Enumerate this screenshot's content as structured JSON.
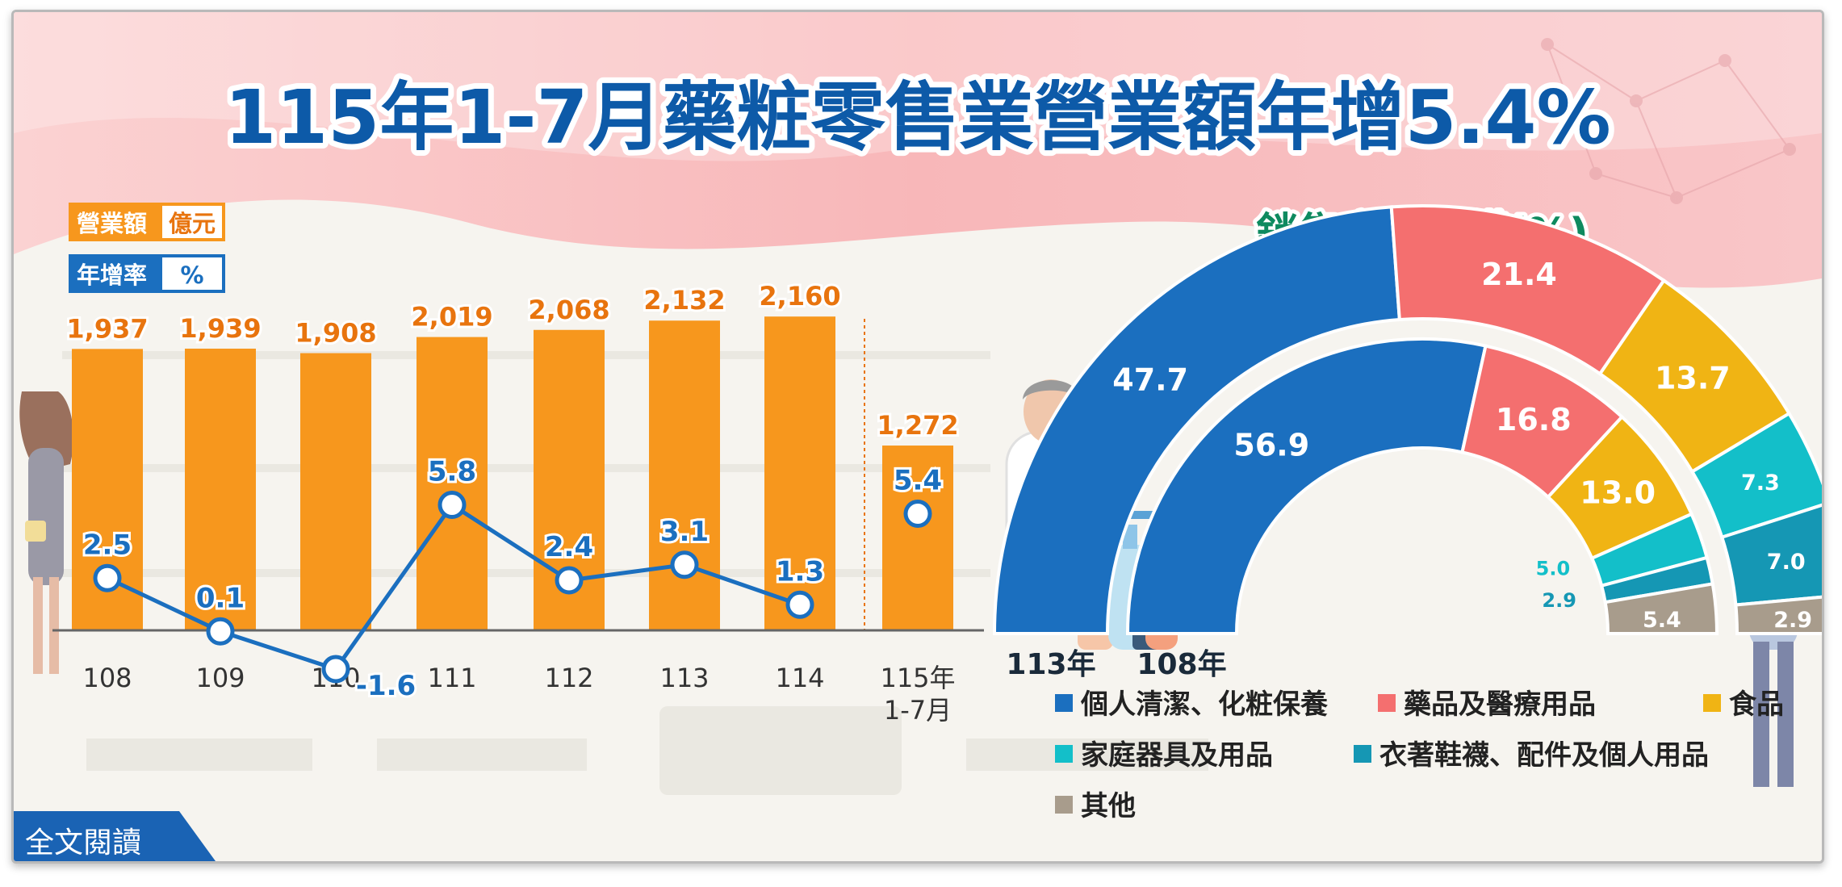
{
  "title": "115年1-7月藥粧零售業營業額年增5.4%",
  "read_more": "全文閱讀",
  "colors": {
    "title_blue": "#0d5aa8",
    "bar_orange": "#f7971d",
    "value_orange": "#e8740e",
    "line_blue": "#1b6fbf",
    "pie_title_green": "#0e8a5f"
  },
  "chart_data": [
    {
      "type": "bar",
      "legend": [
        {
          "label": "營業額",
          "unit": "億元"
        },
        {
          "label": "年增率",
          "unit": "%"
        }
      ],
      "categories": [
        "108",
        "109",
        "110",
        "111",
        "112",
        "113",
        "114",
        "115年\n1-7月"
      ],
      "series": [
        {
          "name": "營業額",
          "type": "bar",
          "values": [
            1937,
            1939,
            1908,
            2019,
            2068,
            2132,
            2160,
            1272
          ],
          "labels": [
            "1,937",
            "1,939",
            "1,908",
            "2,019",
            "2,068",
            "2,132",
            "2,160",
            "1,272"
          ]
        },
        {
          "name": "年增率",
          "type": "line",
          "values": [
            2.5,
            0.1,
            -1.6,
            5.8,
            2.4,
            3.1,
            1.3,
            5.4
          ],
          "labels": [
            "2.5",
            "0.1",
            "-1.6",
            "5.8",
            "2.4",
            "3.1",
            "1.3",
            "5.4"
          ],
          "connected_through": "114"
        }
      ]
    },
    {
      "type": "pie",
      "title": "銷售商品結構(%)",
      "rings": [
        {
          "name": "113年",
          "values": [
            47.7,
            21.4,
            13.7,
            7.3,
            7.0,
            2.9
          ],
          "labels": [
            "47.7",
            "21.4",
            "13.7",
            "7.3",
            "7.0",
            "2.9"
          ]
        },
        {
          "name": "108年",
          "values": [
            56.9,
            16.8,
            13.0,
            5.0,
            2.9,
            5.4
          ],
          "labels": [
            "56.9",
            "16.8",
            "13.0",
            "5.0",
            "2.9",
            "5.4"
          ]
        }
      ],
      "legend": [
        {
          "label": "個人清潔、化粧保養",
          "color": "#1b6fbf"
        },
        {
          "label": "藥品及醫療用品",
          "color": "#f46f6f"
        },
        {
          "label": "食品",
          "color": "#f0b414"
        },
        {
          "label": "家庭器具及用品",
          "color": "#13bfc9"
        },
        {
          "label": "衣著鞋襪、配件及個人用品",
          "color": "#1597b4"
        },
        {
          "label": "其他",
          "color": "#a89c8c"
        }
      ]
    }
  ]
}
